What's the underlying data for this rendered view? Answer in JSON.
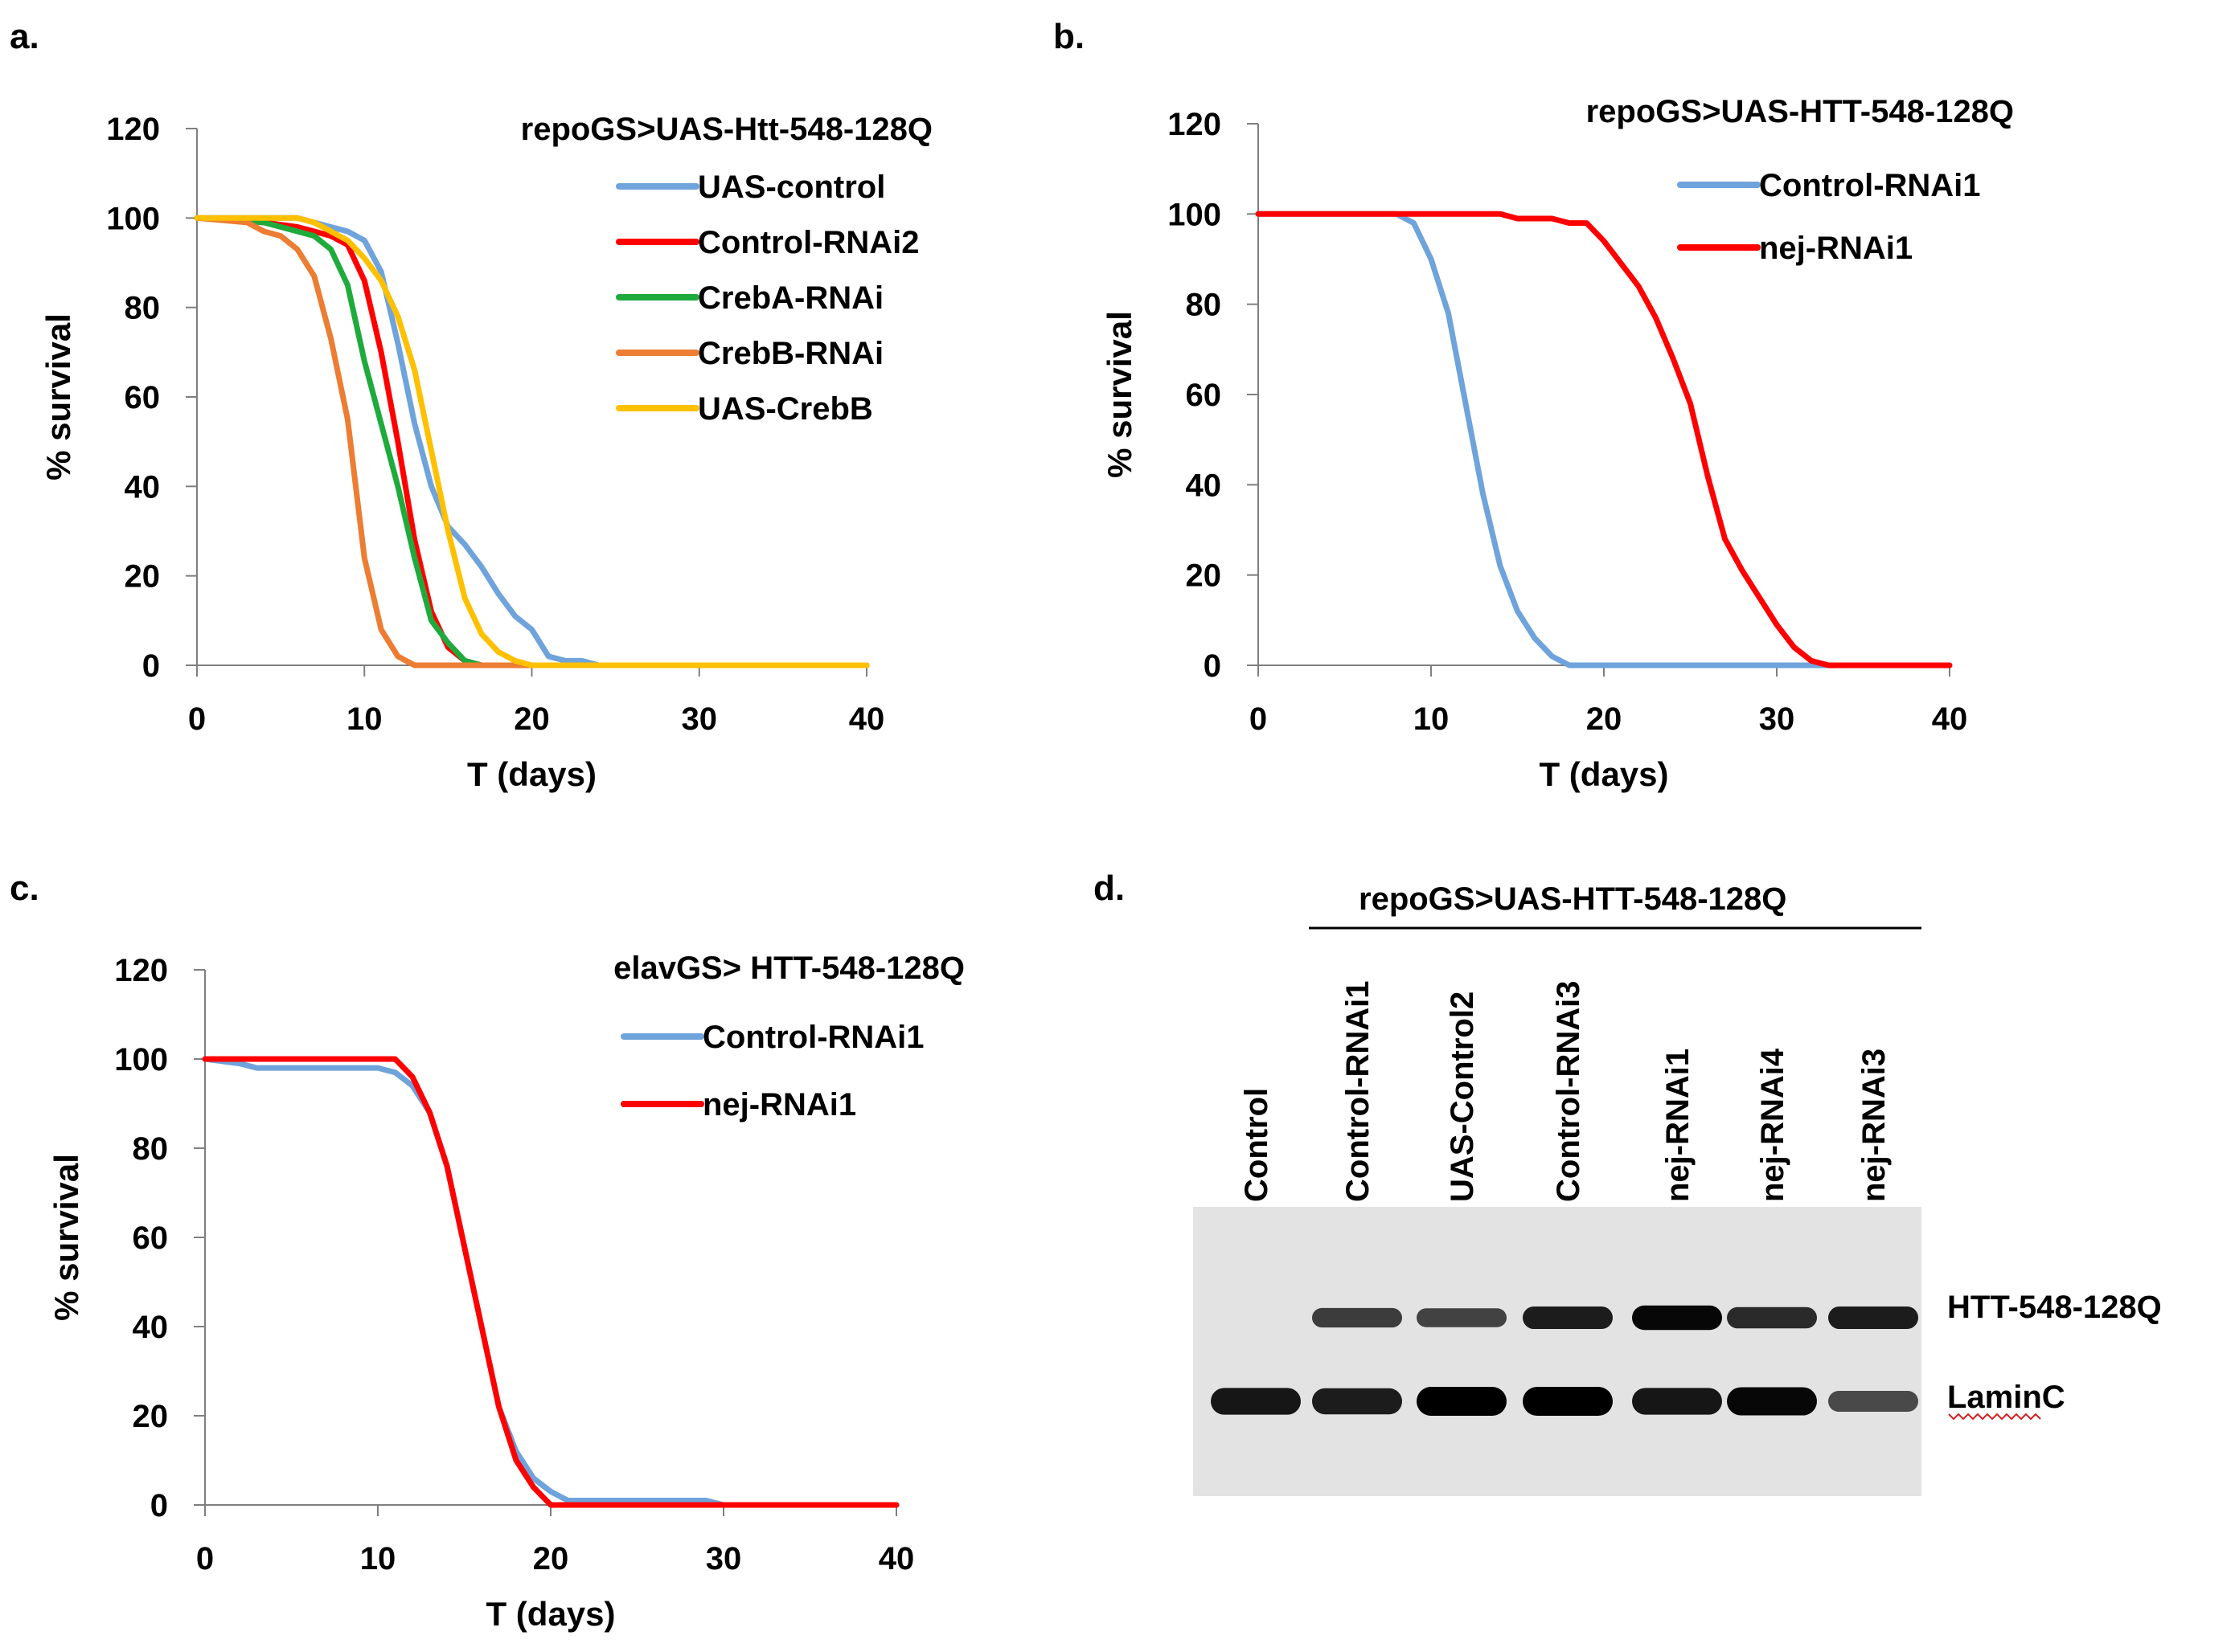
{
  "panels": {
    "a": {
      "label": "a."
    },
    "b": {
      "label": "b."
    },
    "c": {
      "label": "c."
    },
    "d": {
      "label": "d."
    }
  },
  "colors": {
    "blue": "#6fa3db",
    "red": "#ff0000",
    "green": "#1faa3c",
    "orange": "#ec7d32",
    "yellow": "#ffc000",
    "axis": "#7f7f7f",
    "text": "#000000"
  },
  "chart_data": [
    {
      "panel": "a",
      "type": "line",
      "title": "repoGS>UAS-Htt-548-128Q",
      "xlabel": "T (days)",
      "ylabel": "% survival",
      "xlim": [
        0,
        40
      ],
      "ylim": [
        0,
        120
      ],
      "xticks": [
        0,
        10,
        20,
        30,
        40
      ],
      "yticks": [
        0,
        20,
        40,
        60,
        80,
        100,
        120
      ],
      "grid": false,
      "legend": "top-right",
      "series": [
        {
          "name": "UAS-control",
          "color": "#6fa3db",
          "x": [
            0,
            3,
            6,
            8,
            9,
            10,
            11,
            12,
            13,
            14,
            15,
            16,
            17,
            18,
            19,
            20,
            21,
            22,
            23,
            24,
            40
          ],
          "y": [
            100,
            100,
            100,
            98,
            97,
            95,
            88,
            72,
            54,
            40,
            31,
            27,
            22,
            16,
            11,
            8,
            2,
            1,
            1,
            0,
            0
          ]
        },
        {
          "name": "Control-RNAi2",
          "color": "#ff0000",
          "x": [
            0,
            4,
            6,
            7,
            8,
            9,
            10,
            11,
            12,
            13,
            14,
            15,
            16,
            17,
            40
          ],
          "y": [
            100,
            99,
            98,
            97,
            96,
            94,
            86,
            70,
            50,
            28,
            12,
            4,
            1,
            0,
            0
          ]
        },
        {
          "name": "CrebA-RNAi",
          "color": "#1faa3c",
          "x": [
            0,
            4,
            6,
            7,
            8,
            9,
            10,
            11,
            12,
            13,
            14,
            15,
            16,
            17,
            40
          ],
          "y": [
            100,
            99,
            97,
            96,
            93,
            85,
            68,
            54,
            40,
            24,
            10,
            5,
            1,
            0,
            0
          ]
        },
        {
          "name": "CrebB-RNAi",
          "color": "#ec7d32",
          "x": [
            0,
            3,
            4,
            5,
            6,
            7,
            8,
            9,
            10,
            11,
            12,
            13,
            14,
            40
          ],
          "y": [
            100,
            99,
            97,
            96,
            93,
            87,
            73,
            55,
            24,
            8,
            2,
            0,
            0,
            0
          ]
        },
        {
          "name": "UAS-CrebB",
          "color": "#ffc000",
          "x": [
            0,
            6,
            7,
            8,
            9,
            10,
            11,
            12,
            13,
            14,
            15,
            16,
            17,
            18,
            19,
            20,
            40
          ],
          "y": [
            100,
            100,
            99,
            97,
            95,
            91,
            86,
            78,
            66,
            48,
            30,
            15,
            7,
            3,
            1,
            0,
            0
          ]
        }
      ]
    },
    {
      "panel": "b",
      "type": "line",
      "title": "repoGS>UAS-HTT-548-128Q",
      "xlabel": "T (days)",
      "ylabel": "% survival",
      "xlim": [
        0,
        40
      ],
      "ylim": [
        0,
        120
      ],
      "xticks": [
        0,
        10,
        20,
        30,
        40
      ],
      "yticks": [
        0,
        20,
        40,
        60,
        80,
        100,
        120
      ],
      "grid": false,
      "legend": "top-right",
      "series": [
        {
          "name": "Control-RNAi1",
          "color": "#6fa3db",
          "x": [
            0,
            8,
            9,
            10,
            11,
            12,
            13,
            14,
            15,
            16,
            17,
            18,
            19,
            20,
            40
          ],
          "y": [
            100,
            100,
            98,
            90,
            78,
            58,
            38,
            22,
            12,
            6,
            2,
            0,
            0,
            0,
            0
          ]
        },
        {
          "name": "nej-RNAi1",
          "color": "#ff0000",
          "x": [
            0,
            14,
            15,
            16,
            17,
            18,
            19,
            20,
            21,
            22,
            23,
            24,
            25,
            26,
            27,
            28,
            29,
            30,
            31,
            32,
            33,
            40
          ],
          "y": [
            100,
            100,
            99,
            99,
            99,
            98,
            98,
            94,
            89,
            84,
            77,
            68,
            58,
            42,
            28,
            21,
            15,
            9,
            4,
            1,
            0,
            0
          ]
        }
      ]
    },
    {
      "panel": "c",
      "type": "line",
      "title": "elavGS> HTT-548-128Q",
      "xlabel": "T (days)",
      "ylabel": "% survival",
      "xlim": [
        0,
        40
      ],
      "ylim": [
        0,
        120
      ],
      "xticks": [
        0,
        10,
        20,
        30,
        40
      ],
      "yticks": [
        0,
        20,
        40,
        60,
        80,
        100,
        120
      ],
      "grid": false,
      "legend": "top-right",
      "series": [
        {
          "name": "Control-RNAi1",
          "color": "#6fa3db",
          "x": [
            0,
            2,
            3,
            10,
            11,
            12,
            13,
            14,
            15,
            16,
            17,
            18,
            19,
            20,
            21,
            22,
            28,
            29,
            30,
            40
          ],
          "y": [
            100,
            99,
            98,
            98,
            97,
            94,
            88,
            76,
            58,
            40,
            22,
            12,
            6,
            3,
            1,
            1,
            1,
            1,
            0,
            0
          ]
        },
        {
          "name": "nej-RNAi1",
          "color": "#ff0000",
          "x": [
            0,
            10,
            11,
            12,
            13,
            14,
            15,
            16,
            17,
            18,
            19,
            20,
            21,
            40
          ],
          "y": [
            100,
            100,
            100,
            96,
            88,
            76,
            58,
            40,
            22,
            10,
            4,
            0,
            0,
            0
          ]
        }
      ]
    }
  ],
  "blot": {
    "header": "repoGS>UAS-HTT-548-128Q",
    "lanes": [
      "Control",
      "Control-RNAi1",
      "UAS-Control2",
      "Control-RNAi3",
      "nej-RNAi1",
      "nej-RNAi4",
      "nej-RNAi3"
    ],
    "bands": [
      {
        "name": "HTT-548-128Q",
        "intensity": [
          0,
          0.55,
          0.5,
          0.8,
          0.95,
          0.7,
          0.8
        ]
      },
      {
        "name": "LaminC",
        "intensity": [
          0.85,
          0.8,
          1.0,
          1.0,
          0.85,
          0.95,
          0.45
        ]
      }
    ]
  }
}
